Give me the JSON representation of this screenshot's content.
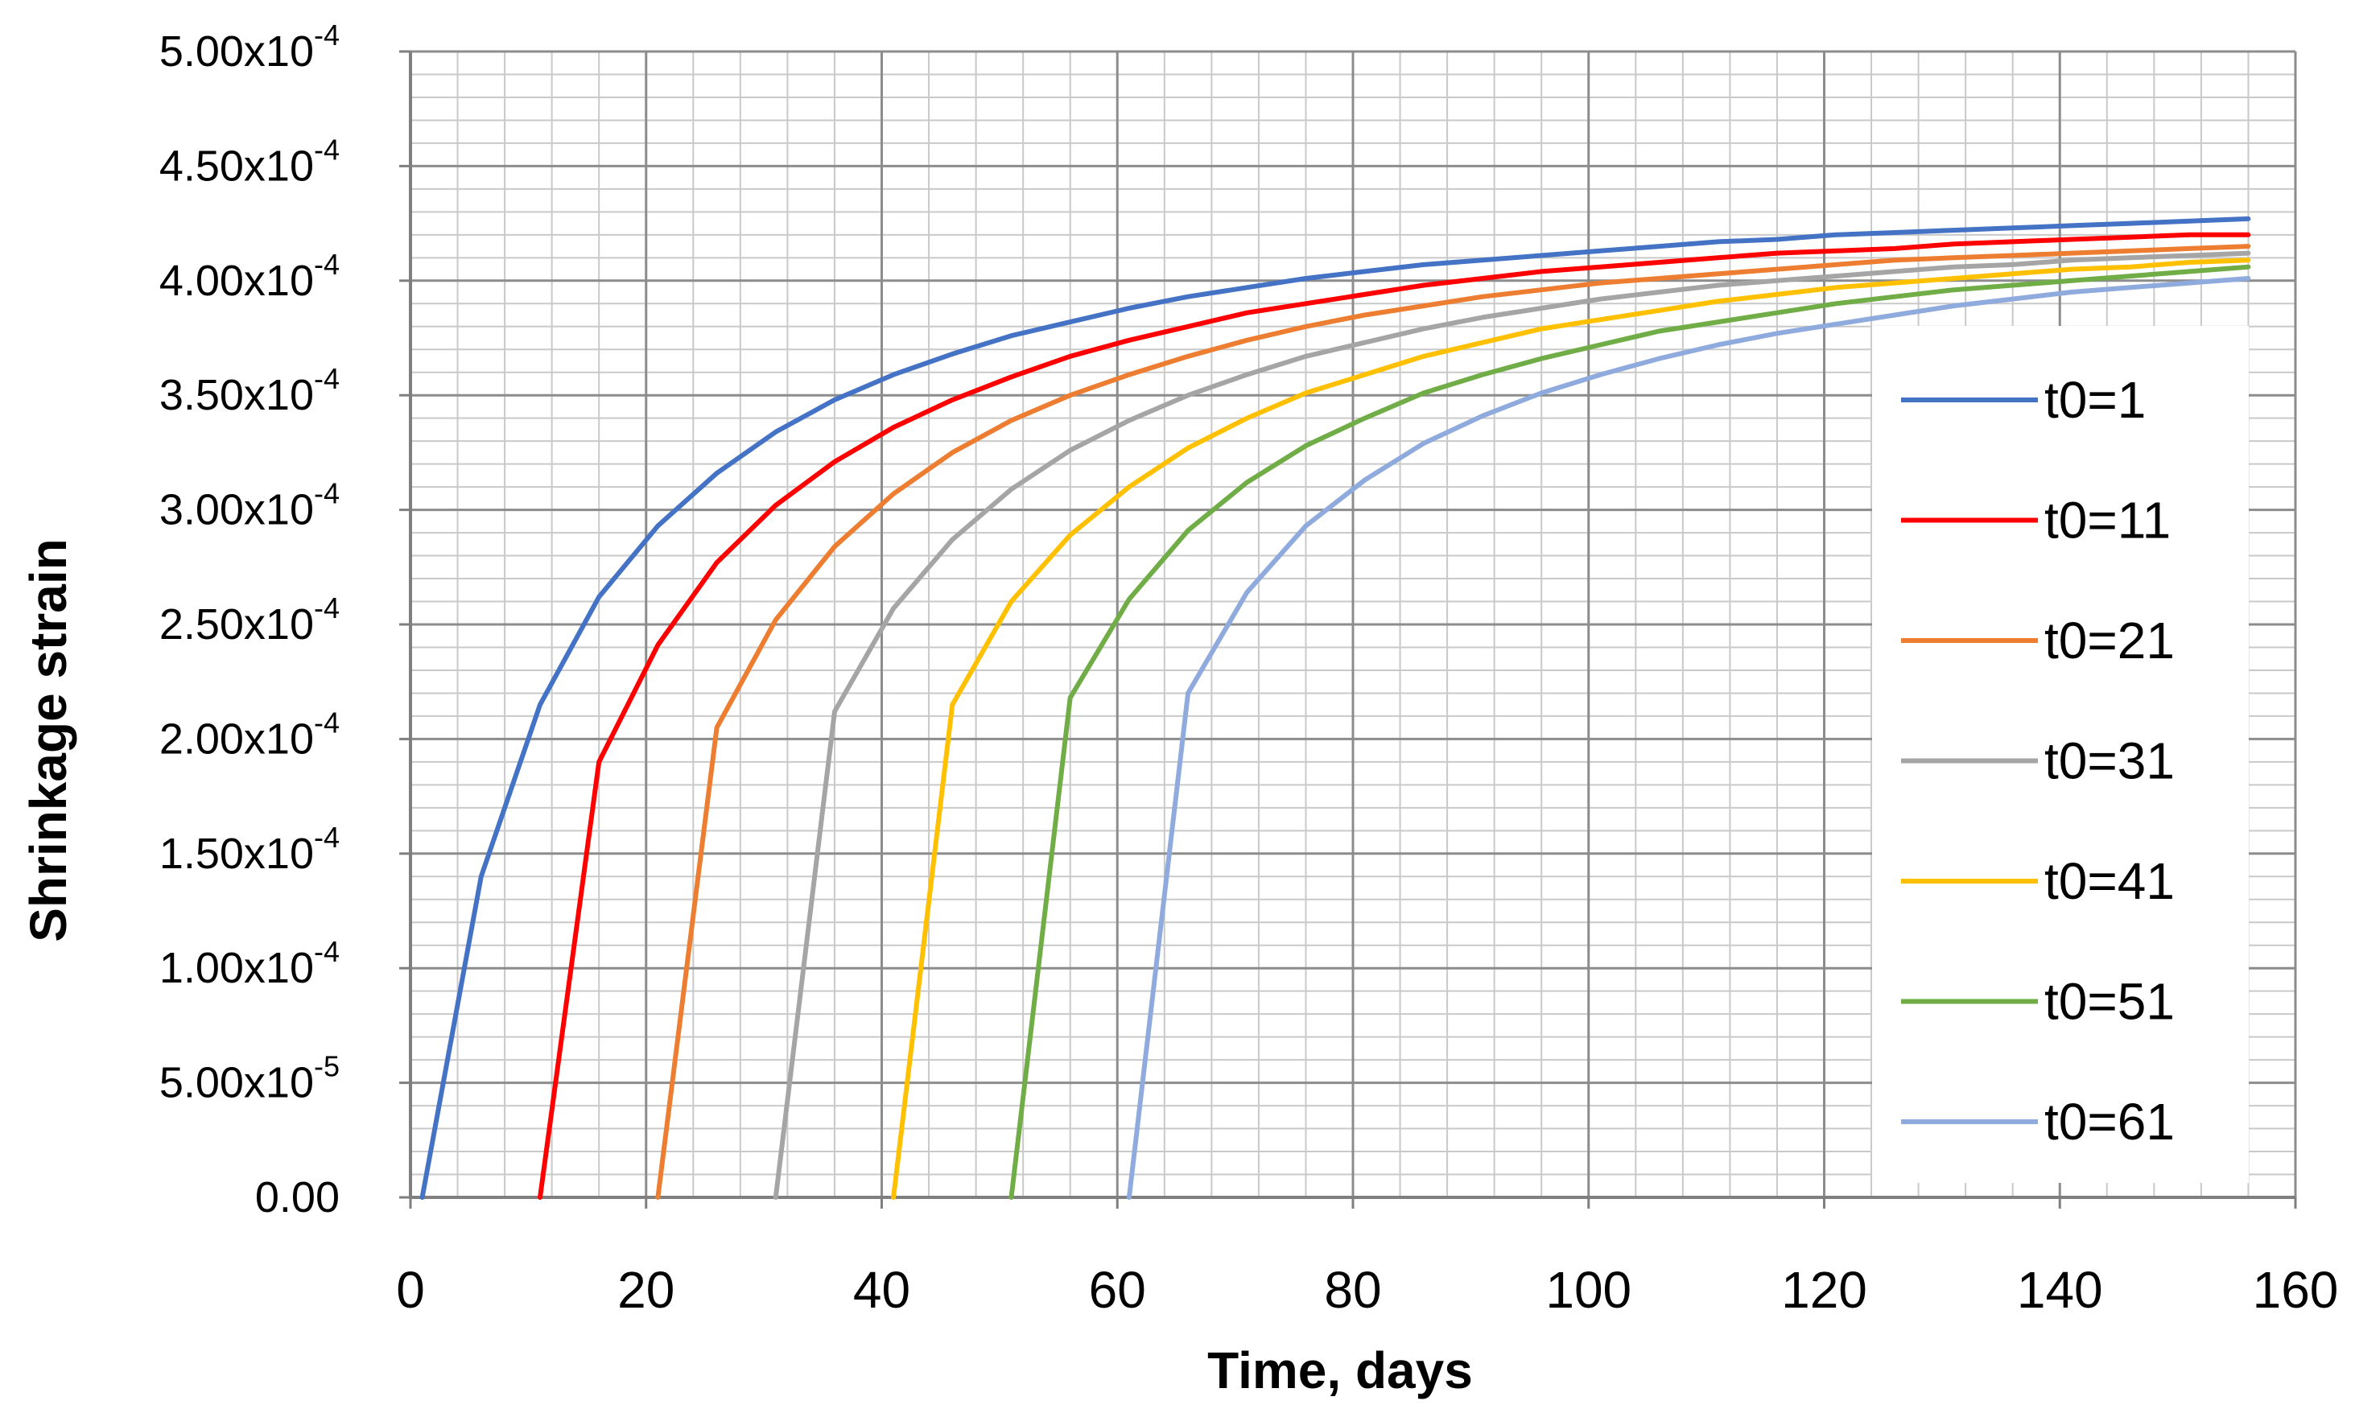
{
  "chart_data": {
    "type": "line",
    "title": "",
    "xlabel": "Time, days",
    "ylabel": "Shrinkage strain",
    "xlim": [
      0,
      160
    ],
    "ylim": [
      0,
      0.0005
    ],
    "grid": true,
    "legend": "right",
    "x_ticks": [
      0,
      20,
      40,
      60,
      80,
      100,
      120,
      140,
      160
    ],
    "x_tick_labels": [
      "0",
      "20",
      "40",
      "60",
      "80",
      "100",
      "120",
      "140",
      "160"
    ],
    "y_ticks": [
      0,
      5e-05,
      0.0001,
      0.00015,
      0.0002,
      0.00025,
      0.0003,
      0.00035,
      0.0004,
      0.00045,
      0.0005
    ],
    "y_tick_labels": [
      {
        "mantissa": "0.00",
        "exp": ""
      },
      {
        "mantissa": "5.00x10",
        "exp": "-5"
      },
      {
        "mantissa": "1.00x10",
        "exp": "-4"
      },
      {
        "mantissa": "1.50x10",
        "exp": "-4"
      },
      {
        "mantissa": "2.00x10",
        "exp": "-4"
      },
      {
        "mantissa": "2.50x10",
        "exp": "-4"
      },
      {
        "mantissa": "3.00x10",
        "exp": "-4"
      },
      {
        "mantissa": "3.50x10",
        "exp": "-4"
      },
      {
        "mantissa": "4.00x10",
        "exp": "-4"
      },
      {
        "mantissa": "4.50x10",
        "exp": "-4"
      },
      {
        "mantissa": "5.00x10",
        "exp": "-4"
      }
    ],
    "series": [
      {
        "name": "t0=1",
        "color": "#4472c4",
        "x": [
          1,
          6,
          11,
          16,
          21,
          26,
          31,
          36,
          41,
          46,
          51,
          56,
          61,
          66,
          71,
          76,
          81,
          86,
          91,
          96,
          101,
          106,
          111,
          116,
          121,
          126,
          131,
          136,
          141,
          146,
          151,
          156
        ],
        "y": [
          0,
          0.00014,
          0.000215,
          0.000262,
          0.000293,
          0.000316,
          0.000334,
          0.000348,
          0.000359,
          0.000368,
          0.000376,
          0.000382,
          0.000388,
          0.000393,
          0.000397,
          0.000401,
          0.000404,
          0.000407,
          0.000409,
          0.000411,
          0.000413,
          0.000415,
          0.000417,
          0.000418,
          0.00042,
          0.000421,
          0.000422,
          0.000423,
          0.000424,
          0.000425,
          0.000426,
          0.000427
        ]
      },
      {
        "name": "t0=11",
        "color": "#ff0000",
        "x": [
          11,
          16,
          21,
          26,
          31,
          36,
          41,
          46,
          51,
          56,
          61,
          66,
          71,
          76,
          81,
          86,
          91,
          96,
          101,
          106,
          111,
          116,
          121,
          126,
          131,
          136,
          141,
          146,
          151,
          156
        ],
        "y": [
          0,
          0.00019,
          0.000241,
          0.000277,
          0.000302,
          0.000321,
          0.000336,
          0.000348,
          0.000358,
          0.000367,
          0.000374,
          0.00038,
          0.000386,
          0.00039,
          0.000394,
          0.000398,
          0.000401,
          0.000404,
          0.000406,
          0.000408,
          0.00041,
          0.000412,
          0.000413,
          0.000414,
          0.000416,
          0.000417,
          0.000418,
          0.000419,
          0.00042,
          0.00042
        ]
      },
      {
        "name": "t0=21",
        "color": "#ed7d31",
        "x": [
          21,
          26,
          31,
          36,
          41,
          46,
          51,
          56,
          61,
          66,
          71,
          76,
          81,
          86,
          91,
          96,
          101,
          106,
          111,
          116,
          121,
          126,
          131,
          136,
          141,
          146,
          151,
          156
        ],
        "y": [
          0,
          0.000205,
          0.000252,
          0.000284,
          0.000307,
          0.000325,
          0.000339,
          0.00035,
          0.000359,
          0.000367,
          0.000374,
          0.00038,
          0.000385,
          0.000389,
          0.000393,
          0.000396,
          0.000399,
          0.000401,
          0.000403,
          0.000405,
          0.000407,
          0.000409,
          0.00041,
          0.000411,
          0.000412,
          0.000413,
          0.000414,
          0.000415
        ]
      },
      {
        "name": "t0=31",
        "color": "#a5a5a5",
        "x": [
          31,
          36,
          41,
          46,
          51,
          56,
          61,
          66,
          71,
          76,
          81,
          86,
          91,
          96,
          101,
          106,
          111,
          116,
          121,
          126,
          131,
          136,
          141,
          146,
          151,
          156
        ],
        "y": [
          0,
          0.000212,
          0.000257,
          0.000287,
          0.000309,
          0.000326,
          0.000339,
          0.00035,
          0.000359,
          0.000367,
          0.000373,
          0.000379,
          0.000384,
          0.000388,
          0.000392,
          0.000395,
          0.000398,
          0.0004,
          0.000402,
          0.000404,
          0.000406,
          0.000407,
          0.000409,
          0.00041,
          0.000411,
          0.000412
        ]
      },
      {
        "name": "t0=41",
        "color": "#ffc000",
        "x": [
          41,
          46,
          51,
          56,
          61,
          66,
          71,
          76,
          81,
          86,
          91,
          96,
          101,
          106,
          111,
          116,
          121,
          126,
          131,
          136,
          141,
          146,
          151,
          156
        ],
        "y": [
          0,
          0.000215,
          0.00026,
          0.000289,
          0.00031,
          0.000327,
          0.00034,
          0.000351,
          0.000359,
          0.000367,
          0.000373,
          0.000379,
          0.000383,
          0.000387,
          0.000391,
          0.000394,
          0.000397,
          0.000399,
          0.000401,
          0.000403,
          0.000405,
          0.000406,
          0.000408,
          0.000409
        ]
      },
      {
        "name": "t0=51",
        "color": "#70ad47",
        "x": [
          51,
          56,
          61,
          66,
          71,
          76,
          81,
          86,
          91,
          96,
          101,
          106,
          111,
          116,
          121,
          126,
          131,
          136,
          141,
          146,
          151,
          156
        ],
        "y": [
          0,
          0.000218,
          0.000261,
          0.000291,
          0.000312,
          0.000328,
          0.00034,
          0.000351,
          0.000359,
          0.000366,
          0.000372,
          0.000378,
          0.000382,
          0.000386,
          0.00039,
          0.000393,
          0.000396,
          0.000398,
          0.0004,
          0.000402,
          0.000404,
          0.000406
        ]
      },
      {
        "name": "t0=61",
        "color": "#8faadc",
        "x": [
          61,
          66,
          71,
          76,
          81,
          86,
          91,
          96,
          101,
          106,
          111,
          116,
          121,
          126,
          131,
          136,
          141,
          146,
          151,
          156
        ],
        "y": [
          0,
          0.00022,
          0.000264,
          0.000293,
          0.000313,
          0.000329,
          0.000341,
          0.000351,
          0.000359,
          0.000366,
          0.000372,
          0.000377,
          0.000381,
          0.000385,
          0.000389,
          0.000392,
          0.000395,
          0.000397,
          0.000399,
          0.000401
        ]
      }
    ]
  }
}
